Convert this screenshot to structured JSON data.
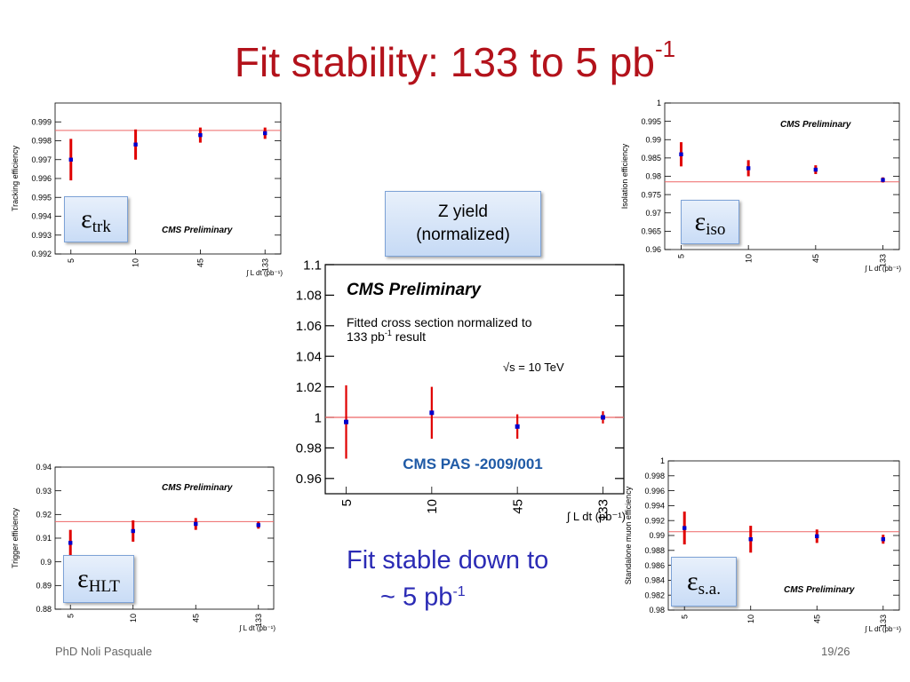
{
  "slide": {
    "title": "Fit stability: 133 to 5 pb",
    "title_sup": "-1",
    "zyield_line1": "Z yield",
    "zyield_line2": "(normalized)",
    "fit_note_line1": "Fit stable down to",
    "fit_note_line2": "~ 5 pb",
    "fit_note_sup": "-1",
    "footer_left": "PhD Noli Pasquale",
    "footer_right": "19/26"
  },
  "badges": {
    "trk": {
      "main": "ε",
      "sub": "trk"
    },
    "iso": {
      "main": "ε",
      "sub": "iso"
    },
    "hlt": {
      "main": "ε",
      "sub": "HLT"
    },
    "sa": {
      "main": "ε",
      "sub": "s.a."
    }
  },
  "colors": {
    "title": "#b3121b",
    "errorbar": "#e00000",
    "point": "#0000cc",
    "refline": "#ee6666",
    "note": "#2b2bb5"
  },
  "chart_data": [
    {
      "id": "trk",
      "type": "scatter",
      "ylabel": "Tracking efficiency",
      "xlabel": "∫ L dt (pb⁻¹)",
      "annotation": "CMS Preliminary",
      "categories": [
        "5",
        "10",
        "45",
        "133"
      ],
      "values": [
        0.997,
        0.9978,
        0.9983,
        0.9984
      ],
      "errors": [
        0.0011,
        0.0008,
        0.0004,
        0.0003
      ],
      "reference": 0.99855,
      "ylim": [
        0.992,
        1.0
      ],
      "yticks": [
        "0.992",
        "0.993",
        "0.994",
        "0.995",
        "0.996",
        "0.997",
        "0.998",
        "0.999"
      ]
    },
    {
      "id": "iso",
      "type": "scatter",
      "ylabel": "Isolation efficiency",
      "xlabel": "∫ L dt (pb⁻¹)",
      "annotation": "CMS Preliminary",
      "categories": [
        "5",
        "10",
        "45",
        "133"
      ],
      "values": [
        0.986,
        0.9822,
        0.9818,
        0.979
      ],
      "errors": [
        0.0033,
        0.0022,
        0.0012,
        0.0007
      ],
      "reference": 0.9785,
      "ylim": [
        0.96,
        1.0
      ],
      "yticks": [
        "0.96",
        "0.965",
        "0.97",
        "0.975",
        "0.98",
        "0.985",
        "0.99",
        "0.995",
        "1"
      ]
    },
    {
      "id": "zyield",
      "type": "scatter",
      "xlabel": "∫ L dt (pb⁻¹)",
      "annotation": "CMS Preliminary",
      "note1": "Fitted cross section normalized to",
      "note2": "133 pb",
      "note2_sup": "-1",
      "note2_tail": " result",
      "energy": "√s = 10 TeV",
      "source": "CMS PAS -2009/001",
      "categories": [
        "5",
        "10",
        "45",
        "133"
      ],
      "values": [
        0.997,
        1.003,
        0.994,
        1.0
      ],
      "errors": [
        0.024,
        0.017,
        0.008,
        0.004
      ],
      "reference": 1.0,
      "ylim": [
        0.95,
        1.1
      ],
      "yticks": [
        "0.96",
        "0.98",
        "1",
        "1.02",
        "1.04",
        "1.06",
        "1.08",
        "1.1"
      ]
    },
    {
      "id": "hlt",
      "type": "scatter",
      "ylabel": "Trigger efficiency",
      "xlabel": "∫ L dt (pb⁻¹)",
      "annotation": "CMS Preliminary",
      "categories": [
        "5",
        "10",
        "45",
        "133"
      ],
      "values": [
        0.908,
        0.913,
        0.916,
        0.9155
      ],
      "errors": [
        0.0055,
        0.0045,
        0.0025,
        0.0015
      ],
      "reference": 0.917,
      "ylim": [
        0.88,
        0.94
      ],
      "yticks": [
        "0.88",
        "0.89",
        "0.9",
        "0.91",
        "0.92",
        "0.93",
        "0.94"
      ]
    },
    {
      "id": "sa",
      "type": "scatter",
      "ylabel": "Standalone muon efficiency",
      "xlabel": "∫ L dt (pb⁻¹)",
      "annotation": "CMS Preliminary",
      "categories": [
        "5",
        "10",
        "45",
        "133"
      ],
      "values": [
        0.991,
        0.9895,
        0.9899,
        0.9895
      ],
      "errors": [
        0.0022,
        0.0018,
        0.0009,
        0.0006
      ],
      "reference": 0.9905,
      "ylim": [
        0.98,
        1.0
      ],
      "yticks": [
        "0.98",
        "0.982",
        "0.984",
        "0.986",
        "0.988",
        "0.99",
        "0.992",
        "0.994",
        "0.996",
        "0.998",
        "1"
      ]
    }
  ]
}
